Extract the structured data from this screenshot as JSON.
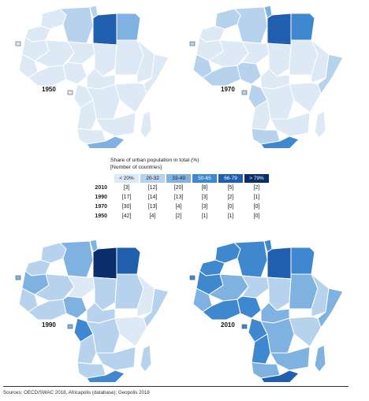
{
  "colors": {
    "c1": "#dde9f5",
    "c2": "#b7d2ec",
    "c3": "#7fb2e0",
    "c4": "#3f88cf",
    "c5": "#1f5fae",
    "c6": "#0b2d6b",
    "border": "#ffffff",
    "outline": "#555555"
  },
  "maps": [
    {
      "year": "1950"
    },
    {
      "year": "1970"
    },
    {
      "year": "1990"
    },
    {
      "year": "2010"
    }
  ],
  "legend": {
    "title_line1": "Share of urban population in total (%)",
    "title_line2": "[Number of countries]",
    "classes": [
      "< 20%",
      "20-32",
      "33-49",
      "50-65",
      "66-79",
      "> 79%"
    ],
    "rows": [
      {
        "year": "2010",
        "counts": [
          "[3]",
          "[12]",
          "[20]",
          "[8]",
          "[5]",
          "[2]"
        ]
      },
      {
        "year": "1990",
        "counts": [
          "[17]",
          "[14]",
          "[13]",
          "[3]",
          "[2]",
          "[1]"
        ]
      },
      {
        "year": "1970",
        "counts": [
          "[30]",
          "[13]",
          "[4]",
          "[3]",
          "[0]",
          "[0]"
        ]
      },
      {
        "year": "1950",
        "counts": [
          "[42]",
          "[4]",
          "[2]",
          "[1]",
          "[1]",
          "[0]"
        ]
      }
    ]
  },
  "source": "Sources: OECD/SWAC 2018, Africapolis (database); Geopolis 2018"
}
